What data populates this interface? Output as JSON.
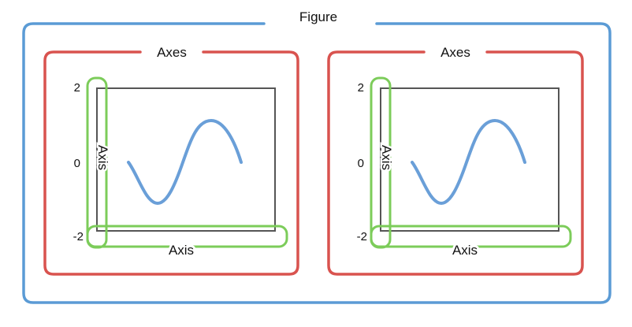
{
  "figure": {
    "label": "Figure"
  },
  "axes_panels": [
    {
      "label": "Axes",
      "y_axis_label": "Axis",
      "x_axis_label": "Axis",
      "y_ticks": [
        "2",
        "0",
        "-2"
      ]
    },
    {
      "label": "Axes",
      "y_axis_label": "Axis",
      "x_axis_label": "Axis",
      "y_ticks": [
        "2",
        "0",
        "-2"
      ]
    }
  ],
  "colors": {
    "figure_border": "#5b9bd5",
    "axes_border": "#d9534f",
    "axis_highlight": "#7ccc5a",
    "plot_frame": "#555555",
    "curve": "#6a9fd8"
  }
}
